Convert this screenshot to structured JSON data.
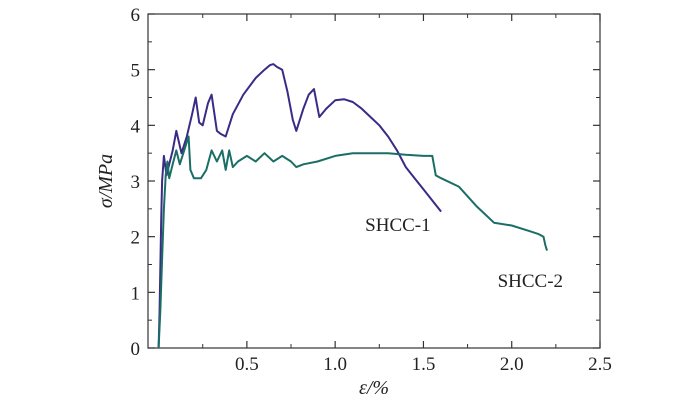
{
  "chart_data": {
    "type": "line",
    "xlabel": "ε/%",
    "ylabel": "σ/MPa",
    "xlim": [
      -0.06,
      2.5
    ],
    "ylim": [
      0,
      6
    ],
    "x_ticks": [
      {
        "value": 0.5,
        "label": "0.5"
      },
      {
        "value": 1.0,
        "label": "1.0"
      },
      {
        "value": 1.5,
        "label": "1.5"
      },
      {
        "value": 2.0,
        "label": "2.0"
      },
      {
        "value": 2.5,
        "label": "2.5"
      }
    ],
    "y_ticks": [
      {
        "value": 0,
        "label": "0"
      },
      {
        "value": 1,
        "label": "1"
      },
      {
        "value": 2,
        "label": "2"
      },
      {
        "value": 3,
        "label": "3"
      },
      {
        "value": 4,
        "label": "4"
      },
      {
        "value": 5,
        "label": "5"
      },
      {
        "value": 6,
        "label": "6"
      }
    ],
    "grid": false,
    "legend": "none",
    "series": [
      {
        "name": "SHCC-1",
        "color": "#3b2a86",
        "label_at": [
          1.17,
          2.1
        ],
        "points": [
          [
            0.0,
            0.0
          ],
          [
            0.005,
            0.6
          ],
          [
            0.01,
            1.5
          ],
          [
            0.015,
            2.3
          ],
          [
            0.02,
            3.0
          ],
          [
            0.03,
            3.45
          ],
          [
            0.045,
            3.1
          ],
          [
            0.06,
            3.3
          ],
          [
            0.08,
            3.55
          ],
          [
            0.1,
            3.9
          ],
          [
            0.13,
            3.5
          ],
          [
            0.16,
            3.8
          ],
          [
            0.19,
            4.2
          ],
          [
            0.21,
            4.5
          ],
          [
            0.23,
            4.05
          ],
          [
            0.25,
            4.0
          ],
          [
            0.28,
            4.4
          ],
          [
            0.3,
            4.55
          ],
          [
            0.33,
            3.9
          ],
          [
            0.35,
            3.85
          ],
          [
            0.38,
            3.8
          ],
          [
            0.42,
            4.2
          ],
          [
            0.48,
            4.55
          ],
          [
            0.55,
            4.85
          ],
          [
            0.6,
            5.0
          ],
          [
            0.63,
            5.08
          ],
          [
            0.65,
            5.1
          ],
          [
            0.67,
            5.05
          ],
          [
            0.7,
            5.0
          ],
          [
            0.73,
            4.6
          ],
          [
            0.76,
            4.1
          ],
          [
            0.78,
            3.9
          ],
          [
            0.82,
            4.3
          ],
          [
            0.85,
            4.55
          ],
          [
            0.88,
            4.65
          ],
          [
            0.91,
            4.15
          ],
          [
            0.95,
            4.3
          ],
          [
            1.0,
            4.45
          ],
          [
            1.05,
            4.47
          ],
          [
            1.1,
            4.42
          ],
          [
            1.15,
            4.3
          ],
          [
            1.2,
            4.15
          ],
          [
            1.25,
            4.0
          ],
          [
            1.3,
            3.8
          ],
          [
            1.35,
            3.55
          ],
          [
            1.4,
            3.25
          ],
          [
            1.45,
            3.05
          ],
          [
            1.5,
            2.85
          ],
          [
            1.55,
            2.65
          ],
          [
            1.6,
            2.45
          ]
        ]
      },
      {
        "name": "SHCC-2",
        "color": "#1a6e66",
        "label_at": [
          1.92,
          1.1
        ],
        "points": [
          [
            0.0,
            0.0
          ],
          [
            0.01,
            0.7
          ],
          [
            0.02,
            1.6
          ],
          [
            0.03,
            2.5
          ],
          [
            0.04,
            3.1
          ],
          [
            0.05,
            3.35
          ],
          [
            0.06,
            3.05
          ],
          [
            0.08,
            3.3
          ],
          [
            0.1,
            3.55
          ],
          [
            0.12,
            3.3
          ],
          [
            0.15,
            3.6
          ],
          [
            0.17,
            3.8
          ],
          [
            0.18,
            3.2
          ],
          [
            0.2,
            3.05
          ],
          [
            0.24,
            3.05
          ],
          [
            0.27,
            3.2
          ],
          [
            0.3,
            3.55
          ],
          [
            0.33,
            3.35
          ],
          [
            0.36,
            3.55
          ],
          [
            0.38,
            3.2
          ],
          [
            0.4,
            3.55
          ],
          [
            0.42,
            3.25
          ],
          [
            0.45,
            3.35
          ],
          [
            0.5,
            3.45
          ],
          [
            0.55,
            3.35
          ],
          [
            0.6,
            3.5
          ],
          [
            0.65,
            3.35
          ],
          [
            0.7,
            3.45
          ],
          [
            0.75,
            3.35
          ],
          [
            0.78,
            3.25
          ],
          [
            0.82,
            3.3
          ],
          [
            0.9,
            3.35
          ],
          [
            1.0,
            3.45
          ],
          [
            1.1,
            3.5
          ],
          [
            1.2,
            3.5
          ],
          [
            1.3,
            3.5
          ],
          [
            1.4,
            3.47
          ],
          [
            1.5,
            3.45
          ],
          [
            1.55,
            3.45
          ],
          [
            1.57,
            3.1
          ],
          [
            1.6,
            3.05
          ],
          [
            1.7,
            2.9
          ],
          [
            1.8,
            2.55
          ],
          [
            1.85,
            2.4
          ],
          [
            1.9,
            2.25
          ],
          [
            2.0,
            2.2
          ],
          [
            2.1,
            2.1
          ],
          [
            2.15,
            2.05
          ],
          [
            2.18,
            2.0
          ],
          [
            2.19,
            1.85
          ],
          [
            2.2,
            1.75
          ]
        ]
      }
    ]
  }
}
